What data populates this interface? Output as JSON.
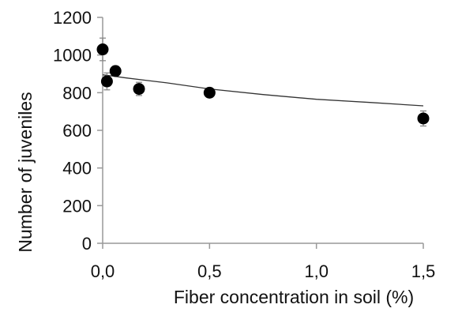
{
  "chart_data": {
    "type": "scatter",
    "title": "",
    "xlabel": "Fiber concentration in soil (%)",
    "ylabel": "Number of juveniles",
    "xlim": [
      0,
      1.5
    ],
    "ylim": [
      0,
      1200
    ],
    "x_ticks": [
      0,
      0.5,
      1.0,
      1.5
    ],
    "x_tick_labels": [
      "0,0",
      "0,5",
      "1,0",
      "1,5"
    ],
    "y_ticks": [
      0,
      200,
      400,
      600,
      800,
      1000,
      1200
    ],
    "y_tick_labels": [
      "0",
      "200",
      "400",
      "600",
      "800",
      "1000",
      "1200"
    ],
    "grid": false,
    "series": [
      {
        "points": [
          {
            "x": 0.0,
            "y": 1030,
            "err": 60
          },
          {
            "x": 0.02,
            "y": 860,
            "err": 45
          },
          {
            "x": 0.06,
            "y": 915,
            "err": 25
          },
          {
            "x": 0.17,
            "y": 820,
            "err": 35
          },
          {
            "x": 0.5,
            "y": 800,
            "err": 20
          },
          {
            "x": 1.5,
            "y": 663,
            "err": 40
          }
        ]
      }
    ],
    "trendline": {
      "x": [
        0.0,
        0.05,
        0.1,
        0.2,
        0.3,
        0.5,
        0.75,
        1.0,
        1.25,
        1.5
      ],
      "y": [
        895,
        888,
        880,
        866,
        852,
        820,
        790,
        765,
        748,
        730
      ]
    },
    "colors": {
      "marker": "#000000",
      "axis": "#999999",
      "trendline": "#333333",
      "errorbar": "#888888"
    }
  }
}
